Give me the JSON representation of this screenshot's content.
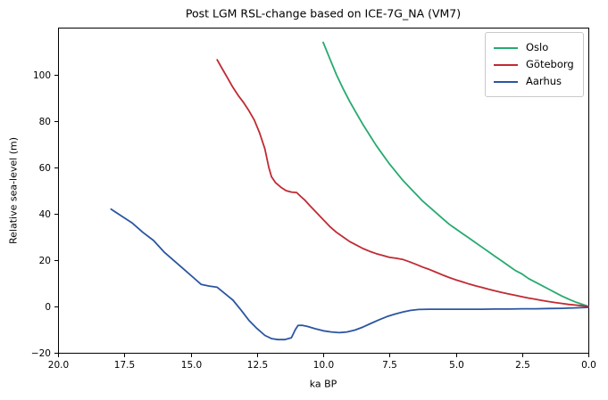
{
  "figure": {
    "background": "#ffffff"
  },
  "chart_data": {
    "type": "line",
    "title": "Post LGM RSL-change based on ICE-7G_NA (VM7)",
    "xlabel": "ka BP",
    "ylabel": "Relative sea-level (m)",
    "grid": false,
    "legend": {
      "position": "upper right",
      "border_color": "#c9c9c9"
    },
    "x_axis": {
      "min": 20.0,
      "max": 0.0,
      "inverted": true,
      "ticks": [
        20.0,
        17.5,
        15.0,
        12.5,
        10.0,
        7.5,
        5.0,
        2.5,
        0.0
      ],
      "tick_labels": [
        "20.0",
        "17.5",
        "15.0",
        "12.5",
        "10.0",
        "7.5",
        "5.0",
        "2.5",
        "0.0"
      ]
    },
    "y_axis": {
      "min": -20,
      "max": 120.4,
      "ticks": [
        -20,
        0,
        20,
        40,
        60,
        80,
        100
      ],
      "tick_labels": [
        "−20",
        "0",
        "20",
        "40",
        "60",
        "80",
        "100"
      ]
    },
    "series": [
      {
        "name": "Oslo",
        "color": "#27aa70",
        "points": [
          [
            10,
            114
          ],
          [
            9.75,
            107
          ],
          [
            9.5,
            100
          ],
          [
            9.25,
            94
          ],
          [
            9,
            88.5
          ],
          [
            8.75,
            83.5
          ],
          [
            8.5,
            78.5
          ],
          [
            8.25,
            74
          ],
          [
            8,
            69.5
          ],
          [
            7.75,
            65.5
          ],
          [
            7.5,
            61.5
          ],
          [
            7.25,
            58
          ],
          [
            7,
            54.5
          ],
          [
            6.75,
            51.5
          ],
          [
            6.5,
            48.5
          ],
          [
            6.25,
            45.5
          ],
          [
            6,
            43
          ],
          [
            5.75,
            40.5
          ],
          [
            5.5,
            38
          ],
          [
            5.25,
            35.5
          ],
          [
            5,
            33.5
          ],
          [
            4.75,
            31.5
          ],
          [
            4.5,
            29.5
          ],
          [
            4.25,
            27.5
          ],
          [
            4,
            25.5
          ],
          [
            3.75,
            23.5
          ],
          [
            3.5,
            21.5
          ],
          [
            3.25,
            19.5
          ],
          [
            3,
            17.5
          ],
          [
            2.75,
            15.5
          ],
          [
            2.5,
            14
          ],
          [
            2.25,
            12
          ],
          [
            2,
            10.5
          ],
          [
            1.75,
            9
          ],
          [
            1.5,
            7.5
          ],
          [
            1.25,
            6
          ],
          [
            1,
            4.5
          ],
          [
            0.75,
            3.2
          ],
          [
            0.5,
            2
          ],
          [
            0.25,
            1
          ],
          [
            0,
            0
          ]
        ]
      },
      {
        "name": "Göteborg",
        "color": "#c02a33",
        "points": [
          [
            14,
            106.5
          ],
          [
            13.8,
            102.5
          ],
          [
            13.6,
            98.5
          ],
          [
            13.4,
            94.5
          ],
          [
            13.2,
            91
          ],
          [
            13,
            88
          ],
          [
            12.8,
            84.5
          ],
          [
            12.6,
            80.5
          ],
          [
            12.4,
            75
          ],
          [
            12.2,
            68
          ],
          [
            12.05,
            60
          ],
          [
            11.95,
            56
          ],
          [
            11.8,
            53.5
          ],
          [
            11.6,
            51.5
          ],
          [
            11.4,
            50
          ],
          [
            11.2,
            49.4
          ],
          [
            11,
            49.2
          ],
          [
            10.85,
            47.5
          ],
          [
            10.7,
            46
          ],
          [
            10.5,
            43.5
          ],
          [
            10.25,
            40.5
          ],
          [
            10,
            37.5
          ],
          [
            9.75,
            34.5
          ],
          [
            9.5,
            32
          ],
          [
            9.25,
            30
          ],
          [
            9,
            28
          ],
          [
            8.75,
            26.5
          ],
          [
            8.5,
            25
          ],
          [
            8.25,
            23.8
          ],
          [
            8,
            22.8
          ],
          [
            7.75,
            22
          ],
          [
            7.5,
            21.2
          ],
          [
            7.25,
            20.8
          ],
          [
            7,
            20.3
          ],
          [
            6.75,
            19.3
          ],
          [
            6.5,
            18.2
          ],
          [
            6.25,
            17
          ],
          [
            6,
            16
          ],
          [
            5.75,
            14.8
          ],
          [
            5.5,
            13.6
          ],
          [
            5.25,
            12.5
          ],
          [
            5,
            11.5
          ],
          [
            4.75,
            10.6
          ],
          [
            4.5,
            9.7
          ],
          [
            4.25,
            8.9
          ],
          [
            4,
            8.2
          ],
          [
            3.75,
            7.4
          ],
          [
            3.5,
            6.7
          ],
          [
            3.25,
            6
          ],
          [
            3,
            5.4
          ],
          [
            2.75,
            4.8
          ],
          [
            2.5,
            4.2
          ],
          [
            2.25,
            3.6
          ],
          [
            2,
            3.1
          ],
          [
            1.75,
            2.6
          ],
          [
            1.5,
            2.1
          ],
          [
            1.25,
            1.7
          ],
          [
            1,
            1.3
          ],
          [
            0.75,
            0.9
          ],
          [
            0.5,
            0.6
          ],
          [
            0.25,
            0.3
          ],
          [
            0,
            0
          ]
        ]
      },
      {
        "name": "Aarhus",
        "color": "#2b55a1",
        "points": [
          [
            18,
            42
          ],
          [
            17.6,
            39
          ],
          [
            17.2,
            36
          ],
          [
            16.8,
            32
          ],
          [
            16.4,
            28.5
          ],
          [
            16,
            23.5
          ],
          [
            15.6,
            19.5
          ],
          [
            15.2,
            15.5
          ],
          [
            14.9,
            12.5
          ],
          [
            14.6,
            9.5
          ],
          [
            14.3,
            8.8
          ],
          [
            14,
            8.3
          ],
          [
            13.7,
            5.5
          ],
          [
            13.4,
            2.7
          ],
          [
            13.1,
            -1.5
          ],
          [
            12.8,
            -6
          ],
          [
            12.5,
            -9.5
          ],
          [
            12.2,
            -12.5
          ],
          [
            11.95,
            -13.9
          ],
          [
            11.7,
            -14.3
          ],
          [
            11.45,
            -14.3
          ],
          [
            11.2,
            -13.5
          ],
          [
            11.05,
            -10
          ],
          [
            10.95,
            -8.2
          ],
          [
            10.8,
            -8.1
          ],
          [
            10.6,
            -8.6
          ],
          [
            10.3,
            -9.6
          ],
          [
            10,
            -10.5
          ],
          [
            9.7,
            -11
          ],
          [
            9.4,
            -11.3
          ],
          [
            9.1,
            -11
          ],
          [
            8.8,
            -10.2
          ],
          [
            8.5,
            -8.9
          ],
          [
            8.2,
            -7.3
          ],
          [
            7.9,
            -5.8
          ],
          [
            7.6,
            -4.4
          ],
          [
            7.3,
            -3.3
          ],
          [
            7,
            -2.4
          ],
          [
            6.7,
            -1.7
          ],
          [
            6.4,
            -1.3
          ],
          [
            6,
            -1.2
          ],
          [
            5.5,
            -1.2
          ],
          [
            5,
            -1.2
          ],
          [
            4.5,
            -1.2
          ],
          [
            4,
            -1.2
          ],
          [
            3.5,
            -1.1
          ],
          [
            3,
            -1.1
          ],
          [
            2.5,
            -1
          ],
          [
            2,
            -1
          ],
          [
            1.5,
            -0.9
          ],
          [
            1,
            -0.8
          ],
          [
            0.5,
            -0.6
          ],
          [
            0,
            -0.4
          ]
        ]
      }
    ]
  }
}
